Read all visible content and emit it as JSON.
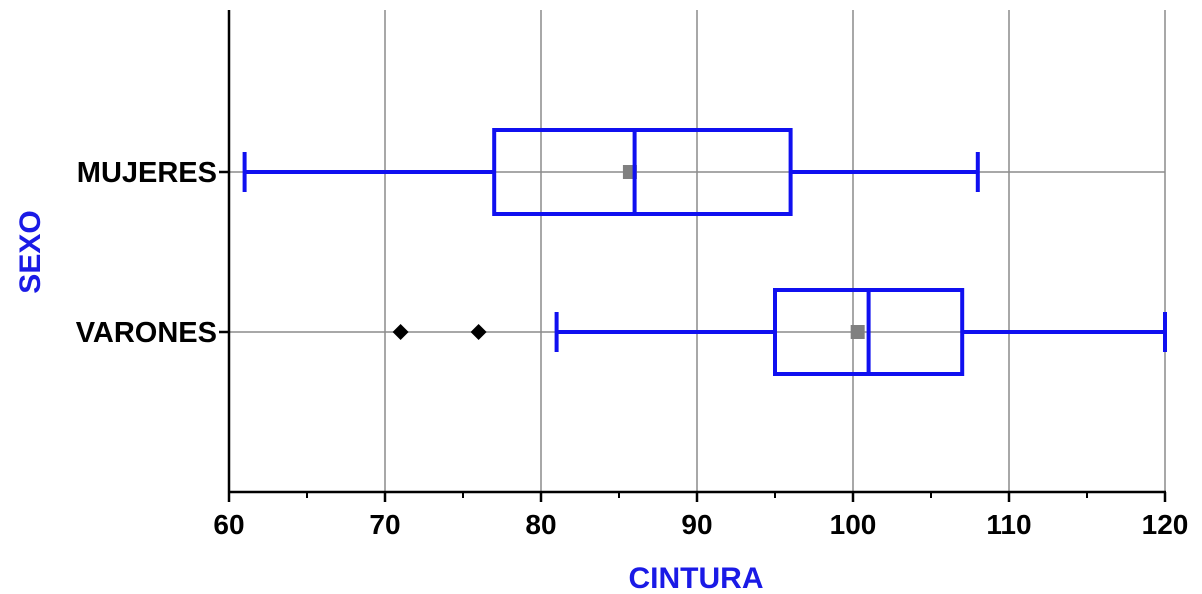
{
  "chart_data": {
    "type": "boxplot",
    "orientation": "horizontal",
    "xlabel": "CINTURA",
    "ylabel": "SEXO",
    "xlim": [
      60,
      120
    ],
    "x_ticks": [
      60,
      70,
      80,
      90,
      100,
      110,
      120
    ],
    "x_minor_ticks": [
      65,
      75,
      85,
      95,
      105,
      115
    ],
    "grid": true,
    "colors": {
      "box": "#1010f0",
      "axis_title": "#1a1ae6",
      "mean": "#808080",
      "outlier": "#000000",
      "grid": "#8c8c8c"
    },
    "series": [
      {
        "name": "MUJERES",
        "whisker_low": 61,
        "q1": 77,
        "median": 86,
        "q3": 96,
        "whisker_high": 108,
        "mean": 85.7,
        "outliers": []
      },
      {
        "name": "VARONES",
        "whisker_low": 81,
        "q1": 95,
        "median": 101,
        "q3": 107,
        "whisker_high": 120,
        "mean": 100.3,
        "outliers": [
          71,
          76
        ]
      }
    ]
  }
}
